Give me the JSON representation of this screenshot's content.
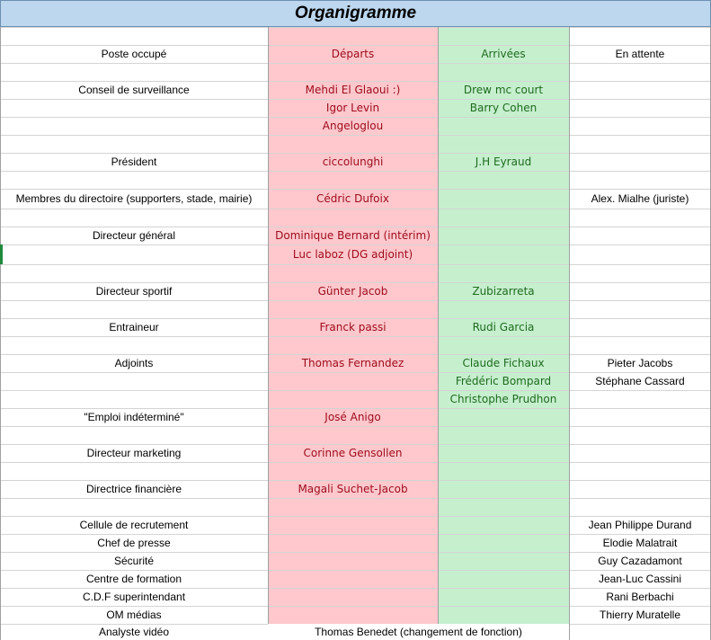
{
  "title": "Organigramme",
  "headers": {
    "poste": "Poste occupé",
    "departs": "Départs",
    "arrivees": "Arrivées",
    "attente": "En attente"
  },
  "rows": [
    {
      "poste": "Poste occupé",
      "departs": "Départs",
      "arrivees": "Arrivées",
      "attente": "En attente"
    },
    {
      "poste": "",
      "departs": "",
      "arrivees": "",
      "attente": ""
    },
    {
      "poste": "Conseil de surveillance",
      "departs": "Mehdi El Glaoui :)",
      "arrivees": "Drew mc court",
      "attente": ""
    },
    {
      "poste": "",
      "departs": "Igor Levin",
      "arrivees": "Barry Cohen",
      "attente": ""
    },
    {
      "poste": "",
      "departs": "Angeloglou",
      "arrivees": "",
      "attente": ""
    },
    {
      "poste": "",
      "departs": "",
      "arrivees": "",
      "attente": ""
    },
    {
      "poste": "Président",
      "departs": "ciccolunghi",
      "arrivees": "J.H Eyraud",
      "attente": ""
    },
    {
      "poste": "",
      "departs": "",
      "arrivees": "",
      "attente": ""
    },
    {
      "poste": "Membres du directoire (supporters, stade, mairie)",
      "departs": "Cédric Dufoix",
      "arrivees": "",
      "attente": "Alex. Mialhe (juriste)"
    },
    {
      "poste": "",
      "departs": "",
      "arrivees": "",
      "attente": ""
    },
    {
      "poste": "Directeur général",
      "departs": "Dominique Bernard (intérim)",
      "arrivees": "",
      "attente": ""
    },
    {
      "poste": "",
      "departs": "Luc laboz (DG adjoint)",
      "arrivees": "",
      "attente": ""
    },
    {
      "poste": "",
      "departs": "",
      "arrivees": "",
      "attente": ""
    },
    {
      "poste": "Directeur sportif",
      "departs": "Günter Jacob",
      "arrivees": "Zubizarreta",
      "attente": ""
    },
    {
      "poste": "",
      "departs": "",
      "arrivees": "",
      "attente": ""
    },
    {
      "poste": "Entraineur",
      "departs": "Franck passi",
      "arrivees": "Rudi Garcia",
      "attente": ""
    },
    {
      "poste": "",
      "departs": "",
      "arrivees": "",
      "attente": ""
    },
    {
      "poste": "Adjoints",
      "departs": "Thomas Fernandez",
      "arrivees": "Claude Fichaux",
      "attente": "Pieter Jacobs"
    },
    {
      "poste": "",
      "departs": "",
      "arrivees": "Frédéric Bompard",
      "attente": "Stéphane Cassard"
    },
    {
      "poste": "",
      "departs": "",
      "arrivees": "Christophe Prudhon",
      "attente": ""
    },
    {
      "poste": "\"Emploi indéterminé\"",
      "departs": "José Anigo",
      "arrivees": "",
      "attente": ""
    },
    {
      "poste": "",
      "departs": "",
      "arrivees": "",
      "attente": ""
    },
    {
      "poste": "Directeur marketing",
      "departs": "Corinne Gensollen",
      "arrivees": "",
      "attente": ""
    },
    {
      "poste": "",
      "departs": "",
      "arrivees": "",
      "attente": ""
    },
    {
      "poste": "Directrice financière",
      "departs": "Magali Suchet-Jacob",
      "arrivees": "",
      "attente": ""
    },
    {
      "poste": "",
      "departs": "",
      "arrivees": "",
      "attente": ""
    },
    {
      "poste": "Cellule de recrutement",
      "departs": "",
      "arrivees": "",
      "attente": "Jean Philippe Durand"
    },
    {
      "poste": "Chef de presse",
      "departs": "",
      "arrivees": "",
      "attente": "Elodie Malatrait"
    },
    {
      "poste": "Sécurité",
      "departs": "",
      "arrivees": "",
      "attente": "Guy Cazadamont"
    },
    {
      "poste": "Centre de formation",
      "departs": "",
      "arrivees": "",
      "attente": "Jean-Luc Cassini"
    },
    {
      "poste": "C.D.F superintendant",
      "departs": "",
      "arrivees": "",
      "attente": "Rani Berbachi"
    },
    {
      "poste": "OM médias",
      "departs": "",
      "arrivees": "",
      "attente": "Thierry Muratelle"
    }
  ],
  "last_row": {
    "poste": "Analyste vidéo",
    "merged": "Thomas Benedet (changement de fonction)"
  },
  "colors": {
    "departs_fill": "#ffc8cd",
    "departs_text": "#9c0a1a",
    "arrivees_fill": "#c6efce",
    "arrivees_text": "#1f6b1f",
    "title_fill": "#bcd7ee"
  }
}
